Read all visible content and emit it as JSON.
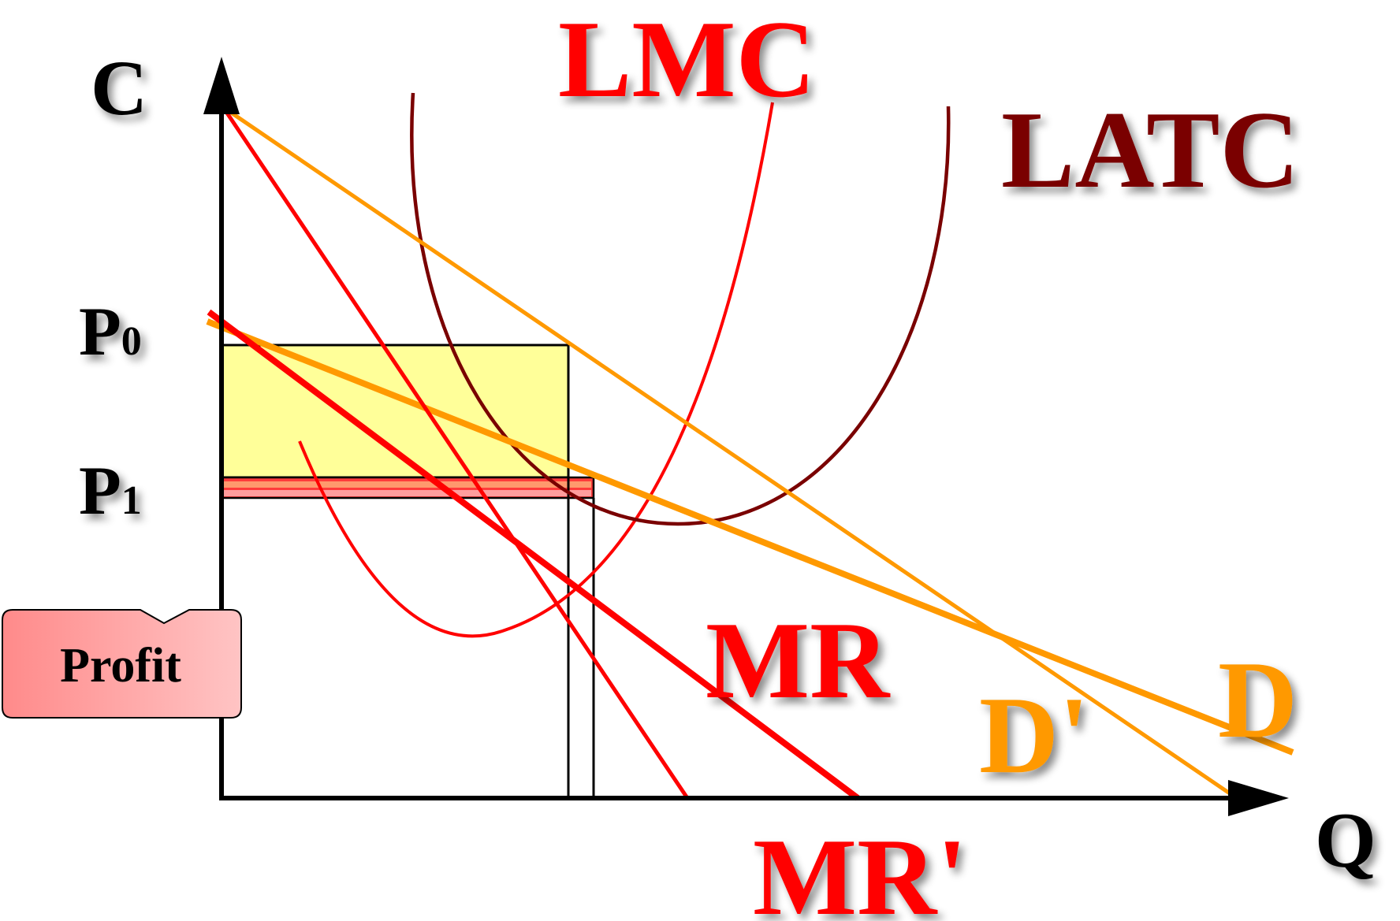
{
  "axes": {
    "y_label": "C",
    "x_label": "Q",
    "price_labels": [
      {
        "main": "P",
        "sub": "0"
      },
      {
        "main": "P",
        "sub": "1"
      }
    ]
  },
  "curves": {
    "lmc": "LMC",
    "latc": "LATC",
    "mr": "MR",
    "mr_prime": "MR'",
    "d": "D",
    "d_prime": "D'"
  },
  "callout": {
    "label": "Profit"
  },
  "colors": {
    "lmc": "#ff0000",
    "latc": "#7a0000",
    "demand": "#ff9900",
    "mr": "#ff0000",
    "profit_area": "#ffff99",
    "profit_strip": "#ff3b3b",
    "callout_fill": "#ff9a9a",
    "axis": "#000000"
  }
}
